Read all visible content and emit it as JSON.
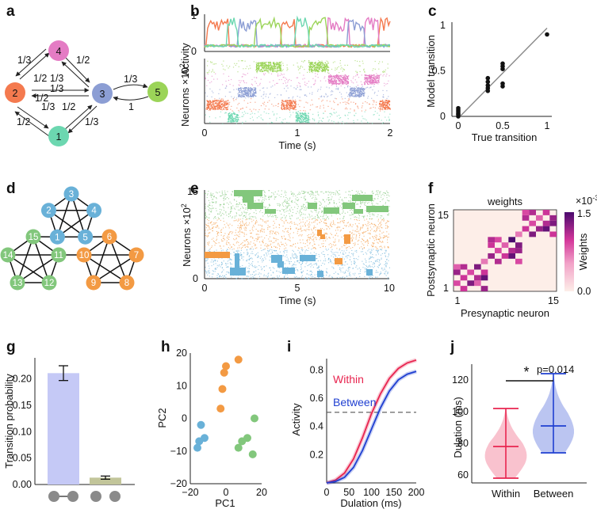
{
  "panels": [
    "a",
    "b",
    "c",
    "d",
    "e",
    "f",
    "g",
    "h",
    "i",
    "j"
  ],
  "colors": {
    "orange": "#f47a4f",
    "pink": "#e47cc4",
    "blue": "#8c9ed4",
    "green": "#9bd458",
    "teal": "#6cd7b0",
    "d_blue": "#69b1d8",
    "d_orange": "#f39a43",
    "d_green": "#82c77c",
    "within": "#e8244f",
    "between": "#1f3fd1",
    "tbar_within": "#c5c9f6",
    "tbar_between": "#c2c59a"
  },
  "a": {
    "nodes": [
      "1",
      "2",
      "3",
      "4",
      "5"
    ],
    "edge_labels": {
      "two_four": "1/3",
      "four_two": "1/2",
      "two_three": "1/2",
      "three_two": "1/3",
      "three_four": "1/3",
      "four_three": "1/2",
      "two_one": "1/3",
      "one_two": "1/2",
      "one_three": "1/2",
      "three_one": "1/3",
      "three_five": "1/3",
      "five_three": "1"
    }
  },
  "b": {
    "activity_label": "Activity",
    "neurons_label": "Neurons ×10",
    "neurons_exp": "2",
    "xlabel": "Time (s)",
    "act_ticks": [
      "1",
      "0"
    ],
    "x_ticks": [
      "0",
      "1",
      "2"
    ]
  },
  "c": {
    "chart_data": {
      "type": "scatter",
      "xlabel": "True transition",
      "ylabel": "Model transition",
      "xlim": [
        0,
        1
      ],
      "ylim": [
        0,
        1
      ],
      "x_ticks": [
        "0",
        "0.5",
        "1"
      ],
      "y_ticks": [
        "0",
        "0.5",
        "1"
      ],
      "points": [
        [
          0,
          0.0
        ],
        [
          0,
          0.02
        ],
        [
          0,
          0.03
        ],
        [
          0,
          0.05
        ],
        [
          0,
          0.07
        ],
        [
          0,
          0.09
        ],
        [
          0.333,
          0.28
        ],
        [
          0.333,
          0.31
        ],
        [
          0.333,
          0.34
        ],
        [
          0.333,
          0.38
        ],
        [
          0.333,
          0.42
        ],
        [
          0.5,
          0.33
        ],
        [
          0.5,
          0.36
        ],
        [
          0.5,
          0.52
        ],
        [
          0.5,
          0.55
        ],
        [
          0.5,
          0.58
        ],
        [
          1.0,
          0.9
        ]
      ],
      "fit_line": [
        [
          0,
          -0.02
        ],
        [
          1,
          0.97
        ]
      ]
    }
  },
  "d": {
    "blue_nodes": [
      "1",
      "2",
      "3",
      "4",
      "5"
    ],
    "orange_nodes": [
      "6",
      "7",
      "8",
      "9",
      "10"
    ],
    "green_nodes": [
      "11",
      "12",
      "13",
      "14",
      "15"
    ]
  },
  "e": {
    "ylabel": "Neurons ×10",
    "yexp": "2",
    "xlabel": "Time (s)",
    "y_ticks": [
      "15",
      "0"
    ],
    "x_ticks": [
      "0",
      "5",
      "10"
    ]
  },
  "f": {
    "title": "weights",
    "xlabel": "Presynaptic neuron",
    "ylabel": "Postsynaptic neuron",
    "x_ticks": [
      "1",
      "15"
    ],
    "y_ticks": [
      "15",
      "1"
    ],
    "cbar_label": "Weights",
    "cbar_exp": "×10",
    "cbar_exp_power": "-3",
    "cbar_ticks": [
      "1.5",
      "0.0"
    ],
    "chart_data": {
      "type": "heatmap",
      "size": 15,
      "vmin": 0,
      "vmax": 1.5,
      "entries": [
        [
          2,
          1,
          1.0
        ],
        [
          5,
          1,
          1.2
        ],
        [
          1,
          2,
          0.9
        ],
        [
          3,
          2,
          1.3
        ],
        [
          4,
          2,
          0.8
        ],
        [
          2,
          3,
          1.0
        ],
        [
          4,
          3,
          1.1
        ],
        [
          5,
          3,
          1.4
        ],
        [
          1,
          4,
          1.2
        ],
        [
          3,
          4,
          0.9
        ],
        [
          5,
          4,
          1.0
        ],
        [
          1,
          5,
          0.8
        ],
        [
          2,
          5,
          1.1
        ],
        [
          4,
          5,
          1.3
        ],
        [
          5,
          6,
          0.7
        ],
        [
          7,
          6,
          1.1
        ],
        [
          10,
          6,
          0.9
        ],
        [
          6,
          7,
          1.2
        ],
        [
          8,
          7,
          1.0
        ],
        [
          9,
          7,
          1.4
        ],
        [
          7,
          8,
          0.9
        ],
        [
          9,
          8,
          1.1
        ],
        [
          10,
          8,
          1.2
        ],
        [
          6,
          9,
          1.0
        ],
        [
          8,
          9,
          0.8
        ],
        [
          10,
          9,
          1.3
        ],
        [
          6,
          10,
          1.1
        ],
        [
          7,
          10,
          0.9
        ],
        [
          9,
          10,
          1.5
        ],
        [
          10,
          11,
          0.7
        ],
        [
          12,
          11,
          1.3
        ],
        [
          15,
          11,
          1.0
        ],
        [
          11,
          12,
          1.0
        ],
        [
          13,
          12,
          1.2
        ],
        [
          14,
          12,
          1.4
        ],
        [
          12,
          13,
          0.9
        ],
        [
          14,
          13,
          1.1
        ],
        [
          15,
          13,
          1.3
        ],
        [
          11,
          14,
          1.1
        ],
        [
          13,
          14,
          0.8
        ],
        [
          15,
          14,
          1.2
        ],
        [
          11,
          15,
          0.9
        ],
        [
          12,
          15,
          1.1
        ],
        [
          14,
          15,
          1.0
        ]
      ]
    }
  },
  "g": {
    "chart_data": {
      "type": "bar",
      "ylabel": "Transition probability",
      "categories": [
        "within",
        "between"
      ],
      "values": [
        0.211,
        0.013
      ],
      "errors": [
        0.014,
        0.003
      ],
      "ylim": [
        0,
        0.24
      ],
      "y_ticks": [
        "0.00",
        "0.05",
        "0.10",
        "0.15",
        "0.20"
      ]
    }
  },
  "h": {
    "chart_data": {
      "type": "scatter",
      "xlabel": "PC1",
      "ylabel": "PC2",
      "xlim": [
        -20,
        20
      ],
      "ylim": [
        -20,
        20
      ],
      "x_ticks": [
        "−20",
        "0",
        "20"
      ],
      "y_ticks": [
        "20",
        "10",
        "0",
        "−10",
        "−20"
      ],
      "series": [
        {
          "name": "blue",
          "points": [
            [
              -14,
              -2
            ],
            [
              -12,
              -6
            ],
            [
              -15,
              -7
            ],
            [
              -16,
              -9
            ]
          ]
        },
        {
          "name": "orange",
          "points": [
            [
              -1,
              14
            ],
            [
              -2,
              9
            ],
            [
              0,
              16
            ],
            [
              -3,
              3
            ],
            [
              7,
              18
            ]
          ]
        },
        {
          "name": "green",
          "points": [
            [
              16,
              0
            ],
            [
              15,
              -11
            ],
            [
              9,
              -7
            ],
            [
              7,
              -9
            ],
            [
              12,
              -6
            ]
          ]
        }
      ]
    }
  },
  "i": {
    "chart_data": {
      "type": "line",
      "xlabel": "Dulation (ms)",
      "ylabel": "Activity",
      "xlim": [
        0,
        200
      ],
      "ylim": [
        0,
        0.88
      ],
      "x_ticks": [
        "0",
        "50",
        "100",
        "150",
        "200"
      ],
      "y_ticks": [
        "0.2",
        "0.4",
        "0.6",
        "0.8"
      ],
      "threshold": 0.5,
      "series": [
        {
          "name": "Within",
          "x": [
            0,
            20,
            40,
            60,
            80,
            100,
            120,
            140,
            160,
            180,
            200
          ],
          "values": [
            0.0,
            0.02,
            0.07,
            0.17,
            0.32,
            0.49,
            0.63,
            0.74,
            0.81,
            0.85,
            0.87
          ]
        },
        {
          "name": "Between",
          "x": [
            0,
            20,
            40,
            60,
            80,
            100,
            120,
            140,
            160,
            180,
            200
          ],
          "values": [
            0.0,
            0.01,
            0.04,
            0.11,
            0.23,
            0.38,
            0.53,
            0.65,
            0.73,
            0.77,
            0.79
          ]
        }
      ]
    }
  },
  "j": {
    "significance": "*",
    "pvalue": "p=0.014",
    "chart_data": {
      "type": "violin",
      "ylabel": "Dulation (ms)",
      "categories": [
        "Within",
        "Between"
      ],
      "ylim": [
        55,
        130
      ],
      "y_ticks": [
        "60",
        "80",
        "100",
        "120"
      ],
      "stats": [
        {
          "min": 58,
          "median": 78,
          "max": 102
        },
        {
          "min": 74,
          "median": 91,
          "max": 124
        }
      ]
    }
  }
}
